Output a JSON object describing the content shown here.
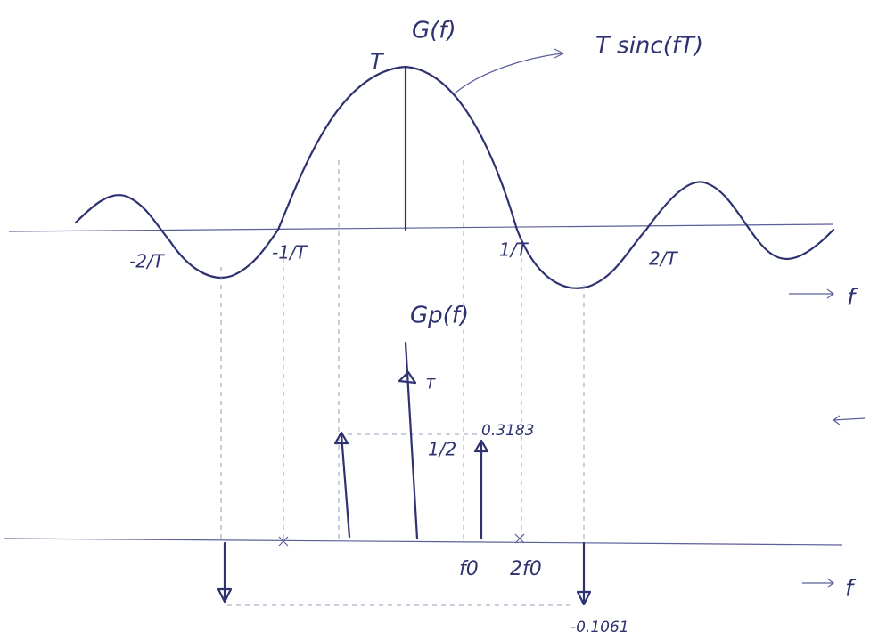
{
  "top_plot": {
    "title": "G(f)",
    "curve_label": "T sinc(fT)",
    "peak_label": "T",
    "axis_label": "f",
    "tick_labels": [
      "-2/T",
      "-1/T",
      "1/T",
      "2/T"
    ]
  },
  "bottom_plot": {
    "title": "Gp(f)",
    "impulse_label": "T",
    "half_label": "1/2",
    "positive_value": "0.3183",
    "negative_value": "-0.1061",
    "tick_labels": [
      "f0",
      "2f0"
    ],
    "axis_label": "f"
  }
}
